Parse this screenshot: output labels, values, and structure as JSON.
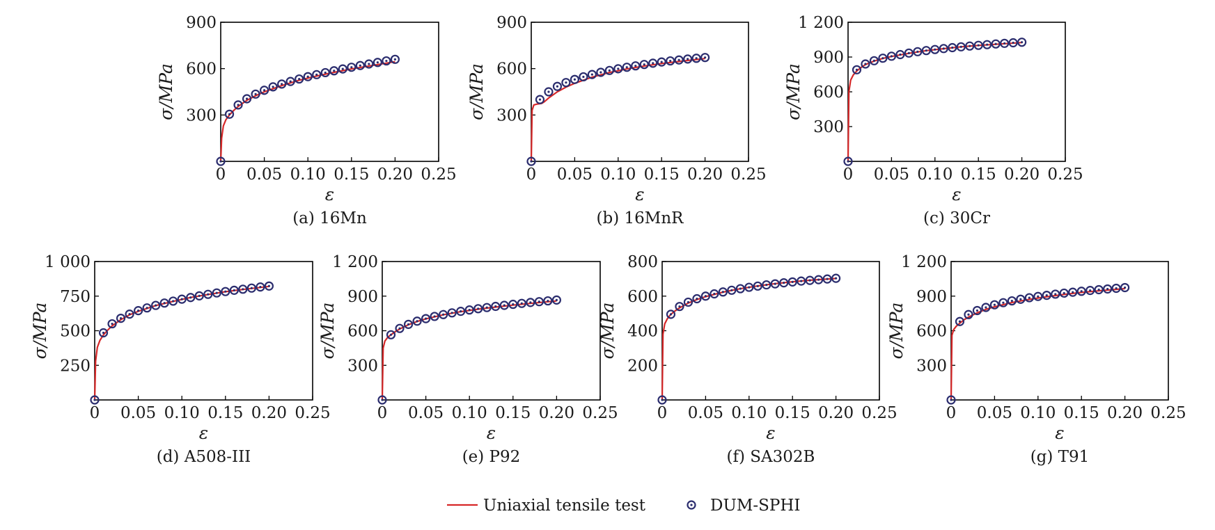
{
  "colors": {
    "test": "#d62728",
    "sim": "#2b2d6e"
  },
  "legend": {
    "test_label": "Uniaxial tensile test",
    "sim_label": "DUM-SPHI"
  },
  "chart_data": [
    {
      "type": "line",
      "caption": "(a) 16Mn",
      "xlabel": "ε",
      "ylabel": "σ/MPa",
      "xlim": [
        0,
        0.25
      ],
      "ylim": [
        0,
        900
      ],
      "xticks": [
        0,
        0.05,
        0.1,
        0.15,
        0.2,
        0.25
      ],
      "xtick_labels": [
        "0",
        "0.05",
        "0.10",
        "0.15",
        "0.20",
        "0.25"
      ],
      "yticks": [
        300,
        600,
        900
      ],
      "ytick_labels": [
        "300",
        "600",
        "900"
      ],
      "grid": false,
      "series": [
        {
          "name": "Uniaxial tensile test",
          "kind": "line",
          "x": [
            0,
            0.001,
            0.003,
            0.006,
            0.01,
            0.015,
            0.02,
            0.03,
            0.04,
            0.05,
            0.07,
            0.09,
            0.11,
            0.13,
            0.15,
            0.17,
            0.2
          ],
          "y": [
            0,
            150,
            230,
            270,
            300,
            330,
            355,
            395,
            425,
            450,
            490,
            525,
            552,
            576,
            598,
            617,
            645
          ]
        },
        {
          "name": "DUM-SPHI",
          "kind": "marker",
          "x": [
            0,
            0.01,
            0.02,
            0.03,
            0.04,
            0.05,
            0.06,
            0.07,
            0.08,
            0.09,
            0.1,
            0.11,
            0.12,
            0.13,
            0.14,
            0.15,
            0.16,
            0.17,
            0.18,
            0.19,
            0.2
          ],
          "y": [
            0,
            305,
            365,
            405,
            435,
            460,
            482,
            500,
            517,
            533,
            548,
            561,
            574,
            586,
            598,
            609,
            620,
            630,
            640,
            650,
            660
          ]
        }
      ]
    },
    {
      "type": "line",
      "caption": "(b) 16MnR",
      "xlabel": "ε",
      "ylabel": "σ/MPa",
      "xlim": [
        0,
        0.25
      ],
      "ylim": [
        0,
        900
      ],
      "xticks": [
        0,
        0.05,
        0.1,
        0.15,
        0.2,
        0.25
      ],
      "xtick_labels": [
        "0",
        "0.05",
        "0.10",
        "0.15",
        "0.20",
        "0.25"
      ],
      "yticks": [
        300,
        600,
        900
      ],
      "ytick_labels": [
        "300",
        "600",
        "900"
      ],
      "grid": false,
      "series": [
        {
          "name": "Uniaxial tensile test",
          "kind": "line",
          "x": [
            0,
            0.001,
            0.003,
            0.006,
            0.012,
            0.015,
            0.02,
            0.03,
            0.04,
            0.05,
            0.07,
            0.09,
            0.11,
            0.13,
            0.15,
            0.17,
            0.2
          ],
          "y": [
            0,
            330,
            365,
            370,
            375,
            385,
            410,
            450,
            480,
            505,
            545,
            575,
            598,
            617,
            633,
            646,
            665
          ]
        },
        {
          "name": "DUM-SPHI",
          "kind": "marker",
          "x": [
            0,
            0.01,
            0.02,
            0.03,
            0.04,
            0.05,
            0.06,
            0.07,
            0.08,
            0.09,
            0.1,
            0.11,
            0.12,
            0.13,
            0.14,
            0.15,
            0.16,
            0.17,
            0.18,
            0.19,
            0.2
          ],
          "y": [
            0,
            400,
            450,
            485,
            510,
            530,
            547,
            562,
            576,
            588,
            599,
            609,
            618,
            627,
            635,
            643,
            650,
            656,
            662,
            667,
            672
          ]
        }
      ]
    },
    {
      "type": "line",
      "caption": "(c) 30Cr",
      "xlabel": "ε",
      "ylabel": "σ/MPa",
      "xlim": [
        0,
        0.25
      ],
      "ylim": [
        0,
        1200
      ],
      "xticks": [
        0,
        0.05,
        0.1,
        0.15,
        0.2,
        0.25
      ],
      "xtick_labels": [
        "0",
        "0.05",
        "0.10",
        "0.15",
        "0.20",
        "0.25"
      ],
      "yticks": [
        300,
        600,
        900,
        1200
      ],
      "ytick_labels": [
        "300",
        "600",
        "900",
        "1 200"
      ],
      "grid": false,
      "series": [
        {
          "name": "Uniaxial tensile test",
          "kind": "line",
          "x": [
            0,
            0.001,
            0.003,
            0.006,
            0.01,
            0.015,
            0.02,
            0.03,
            0.04,
            0.05,
            0.07,
            0.09,
            0.11,
            0.13,
            0.15,
            0.17,
            0.2
          ],
          "y": [
            0,
            600,
            700,
            745,
            780,
            810,
            835,
            865,
            888,
            905,
            932,
            955,
            972,
            988,
            1000,
            1010,
            1025
          ]
        },
        {
          "name": "DUM-SPHI",
          "kind": "marker",
          "x": [
            0,
            0.01,
            0.02,
            0.03,
            0.04,
            0.05,
            0.06,
            0.07,
            0.08,
            0.09,
            0.1,
            0.11,
            0.12,
            0.13,
            0.14,
            0.15,
            0.16,
            0.17,
            0.18,
            0.19,
            0.2
          ],
          "y": [
            0,
            790,
            840,
            868,
            890,
            907,
            921,
            934,
            946,
            956,
            965,
            973,
            981,
            988,
            995,
            1001,
            1007,
            1013,
            1018,
            1023,
            1028
          ]
        }
      ]
    },
    {
      "type": "line",
      "caption": "(d) A508-III",
      "xlabel": "ε",
      "ylabel": "σ/MPa",
      "xlim": [
        0,
        0.25
      ],
      "ylim": [
        0,
        1000
      ],
      "xticks": [
        0,
        0.05,
        0.1,
        0.15,
        0.2,
        0.25
      ],
      "xtick_labels": [
        "0",
        "0.05",
        "0.10",
        "0.15",
        "0.20",
        "0.25"
      ],
      "yticks": [
        250,
        500,
        750,
        1000
      ],
      "ytick_labels": [
        "250",
        "500",
        "750",
        "1 000"
      ],
      "grid": false,
      "series": [
        {
          "name": "Uniaxial tensile test",
          "kind": "line",
          "x": [
            0,
            0.001,
            0.003,
            0.006,
            0.01,
            0.015,
            0.02,
            0.03,
            0.04,
            0.05,
            0.07,
            0.09,
            0.11,
            0.13,
            0.15,
            0.17,
            0.2
          ],
          "y": [
            0,
            280,
            380,
            430,
            470,
            505,
            535,
            580,
            615,
            640,
            682,
            712,
            740,
            762,
            782,
            798,
            820
          ]
        },
        {
          "name": "DUM-SPHI",
          "kind": "marker",
          "x": [
            0,
            0.01,
            0.02,
            0.03,
            0.04,
            0.05,
            0.06,
            0.07,
            0.08,
            0.09,
            0.1,
            0.11,
            0.12,
            0.13,
            0.14,
            0.15,
            0.16,
            0.17,
            0.18,
            0.19,
            0.2
          ],
          "y": [
            0,
            485,
            550,
            590,
            620,
            645,
            665,
            683,
            700,
            714,
            728,
            740,
            752,
            763,
            773,
            783,
            792,
            800,
            808,
            816,
            823
          ]
        }
      ]
    },
    {
      "type": "line",
      "caption": "(e) P92",
      "xlabel": "ε",
      "ylabel": "σ/MPa",
      "xlim": [
        0,
        0.25
      ],
      "ylim": [
        0,
        1200
      ],
      "xticks": [
        0,
        0.05,
        0.1,
        0.15,
        0.2,
        0.25
      ],
      "xtick_labels": [
        "0",
        "0.05",
        "0.10",
        "0.15",
        "0.20",
        "0.25"
      ],
      "yticks": [
        300,
        600,
        900,
        1200
      ],
      "ytick_labels": [
        "300",
        "600",
        "900",
        "1 200"
      ],
      "grid": false,
      "series": [
        {
          "name": "Uniaxial tensile test",
          "kind": "line",
          "x": [
            0,
            0.001,
            0.003,
            0.006,
            0.01,
            0.015,
            0.02,
            0.03,
            0.04,
            0.05,
            0.07,
            0.09,
            0.11,
            0.13,
            0.15,
            0.17,
            0.2
          ],
          "y": [
            0,
            450,
            510,
            540,
            565,
            592,
            615,
            652,
            680,
            703,
            738,
            765,
            787,
            805,
            822,
            837,
            858
          ]
        },
        {
          "name": "DUM-SPHI",
          "kind": "marker",
          "x": [
            0,
            0.01,
            0.02,
            0.03,
            0.04,
            0.05,
            0.06,
            0.07,
            0.08,
            0.09,
            0.1,
            0.11,
            0.12,
            0.13,
            0.14,
            0.15,
            0.16,
            0.17,
            0.18,
            0.19,
            0.2
          ],
          "y": [
            0,
            565,
            620,
            655,
            683,
            705,
            724,
            740,
            755,
            768,
            780,
            791,
            801,
            811,
            820,
            829,
            837,
            845,
            852,
            859,
            866
          ]
        }
      ]
    },
    {
      "type": "line",
      "caption": "(f) SA302B",
      "xlabel": "ε",
      "ylabel": "σ/MPa",
      "xlim": [
        0,
        0.25
      ],
      "ylim": [
        0,
        800
      ],
      "xticks": [
        0,
        0.05,
        0.1,
        0.15,
        0.2,
        0.25
      ],
      "xtick_labels": [
        "0",
        "0.05",
        "0.10",
        "0.15",
        "0.20",
        "0.25"
      ],
      "yticks": [
        200,
        400,
        600,
        800
      ],
      "ytick_labels": [
        "200",
        "400",
        "600",
        "800"
      ],
      "grid": false,
      "series": [
        {
          "name": "Uniaxial tensile test",
          "kind": "line",
          "x": [
            0,
            0.001,
            0.003,
            0.006,
            0.01,
            0.015,
            0.02,
            0.03,
            0.04,
            0.05,
            0.07,
            0.09,
            0.11,
            0.13,
            0.15,
            0.17,
            0.2
          ],
          "y": [
            0,
            380,
            440,
            470,
            495,
            515,
            532,
            560,
            580,
            597,
            623,
            643,
            659,
            672,
            683,
            692,
            702
          ]
        },
        {
          "name": "DUM-SPHI",
          "kind": "marker",
          "x": [
            0,
            0.01,
            0.02,
            0.03,
            0.04,
            0.05,
            0.06,
            0.07,
            0.08,
            0.09,
            0.1,
            0.11,
            0.12,
            0.13,
            0.14,
            0.15,
            0.16,
            0.17,
            0.18,
            0.19,
            0.2
          ],
          "y": [
            0,
            495,
            540,
            565,
            585,
            600,
            613,
            624,
            634,
            643,
            651,
            658,
            665,
            671,
            677,
            682,
            687,
            691,
            695,
            699,
            703
          ]
        }
      ]
    },
    {
      "type": "line",
      "caption": "(g) T91",
      "xlabel": "ε",
      "ylabel": "σ/MPa",
      "xlim": [
        0,
        0.25
      ],
      "ylim": [
        0,
        1200
      ],
      "xticks": [
        0,
        0.05,
        0.1,
        0.15,
        0.2,
        0.25
      ],
      "xtick_labels": [
        "0",
        "0.05",
        "0.10",
        "0.15",
        "0.20",
        "0.25"
      ],
      "yticks": [
        300,
        600,
        900,
        1200
      ],
      "ytick_labels": [
        "300",
        "600",
        "900",
        "1 200"
      ],
      "grid": false,
      "series": [
        {
          "name": "Uniaxial tensile test",
          "kind": "line",
          "x": [
            0,
            0.001,
            0.003,
            0.006,
            0.01,
            0.015,
            0.02,
            0.03,
            0.04,
            0.05,
            0.07,
            0.09,
            0.11,
            0.13,
            0.15,
            0.17,
            0.2
          ],
          "y": [
            0,
            560,
            610,
            640,
            665,
            695,
            718,
            755,
            785,
            808,
            845,
            872,
            895,
            915,
            932,
            946,
            965
          ]
        },
        {
          "name": "DUM-SPHI",
          "kind": "marker",
          "x": [
            0,
            0.01,
            0.02,
            0.03,
            0.04,
            0.05,
            0.06,
            0.07,
            0.08,
            0.09,
            0.1,
            0.11,
            0.12,
            0.13,
            0.14,
            0.15,
            0.16,
            0.17,
            0.18,
            0.19,
            0.2
          ],
          "y": [
            0,
            680,
            740,
            775,
            802,
            825,
            843,
            859,
            873,
            886,
            897,
            907,
            917,
            926,
            934,
            942,
            949,
            956,
            962,
            968,
            974
          ]
        }
      ]
    }
  ]
}
